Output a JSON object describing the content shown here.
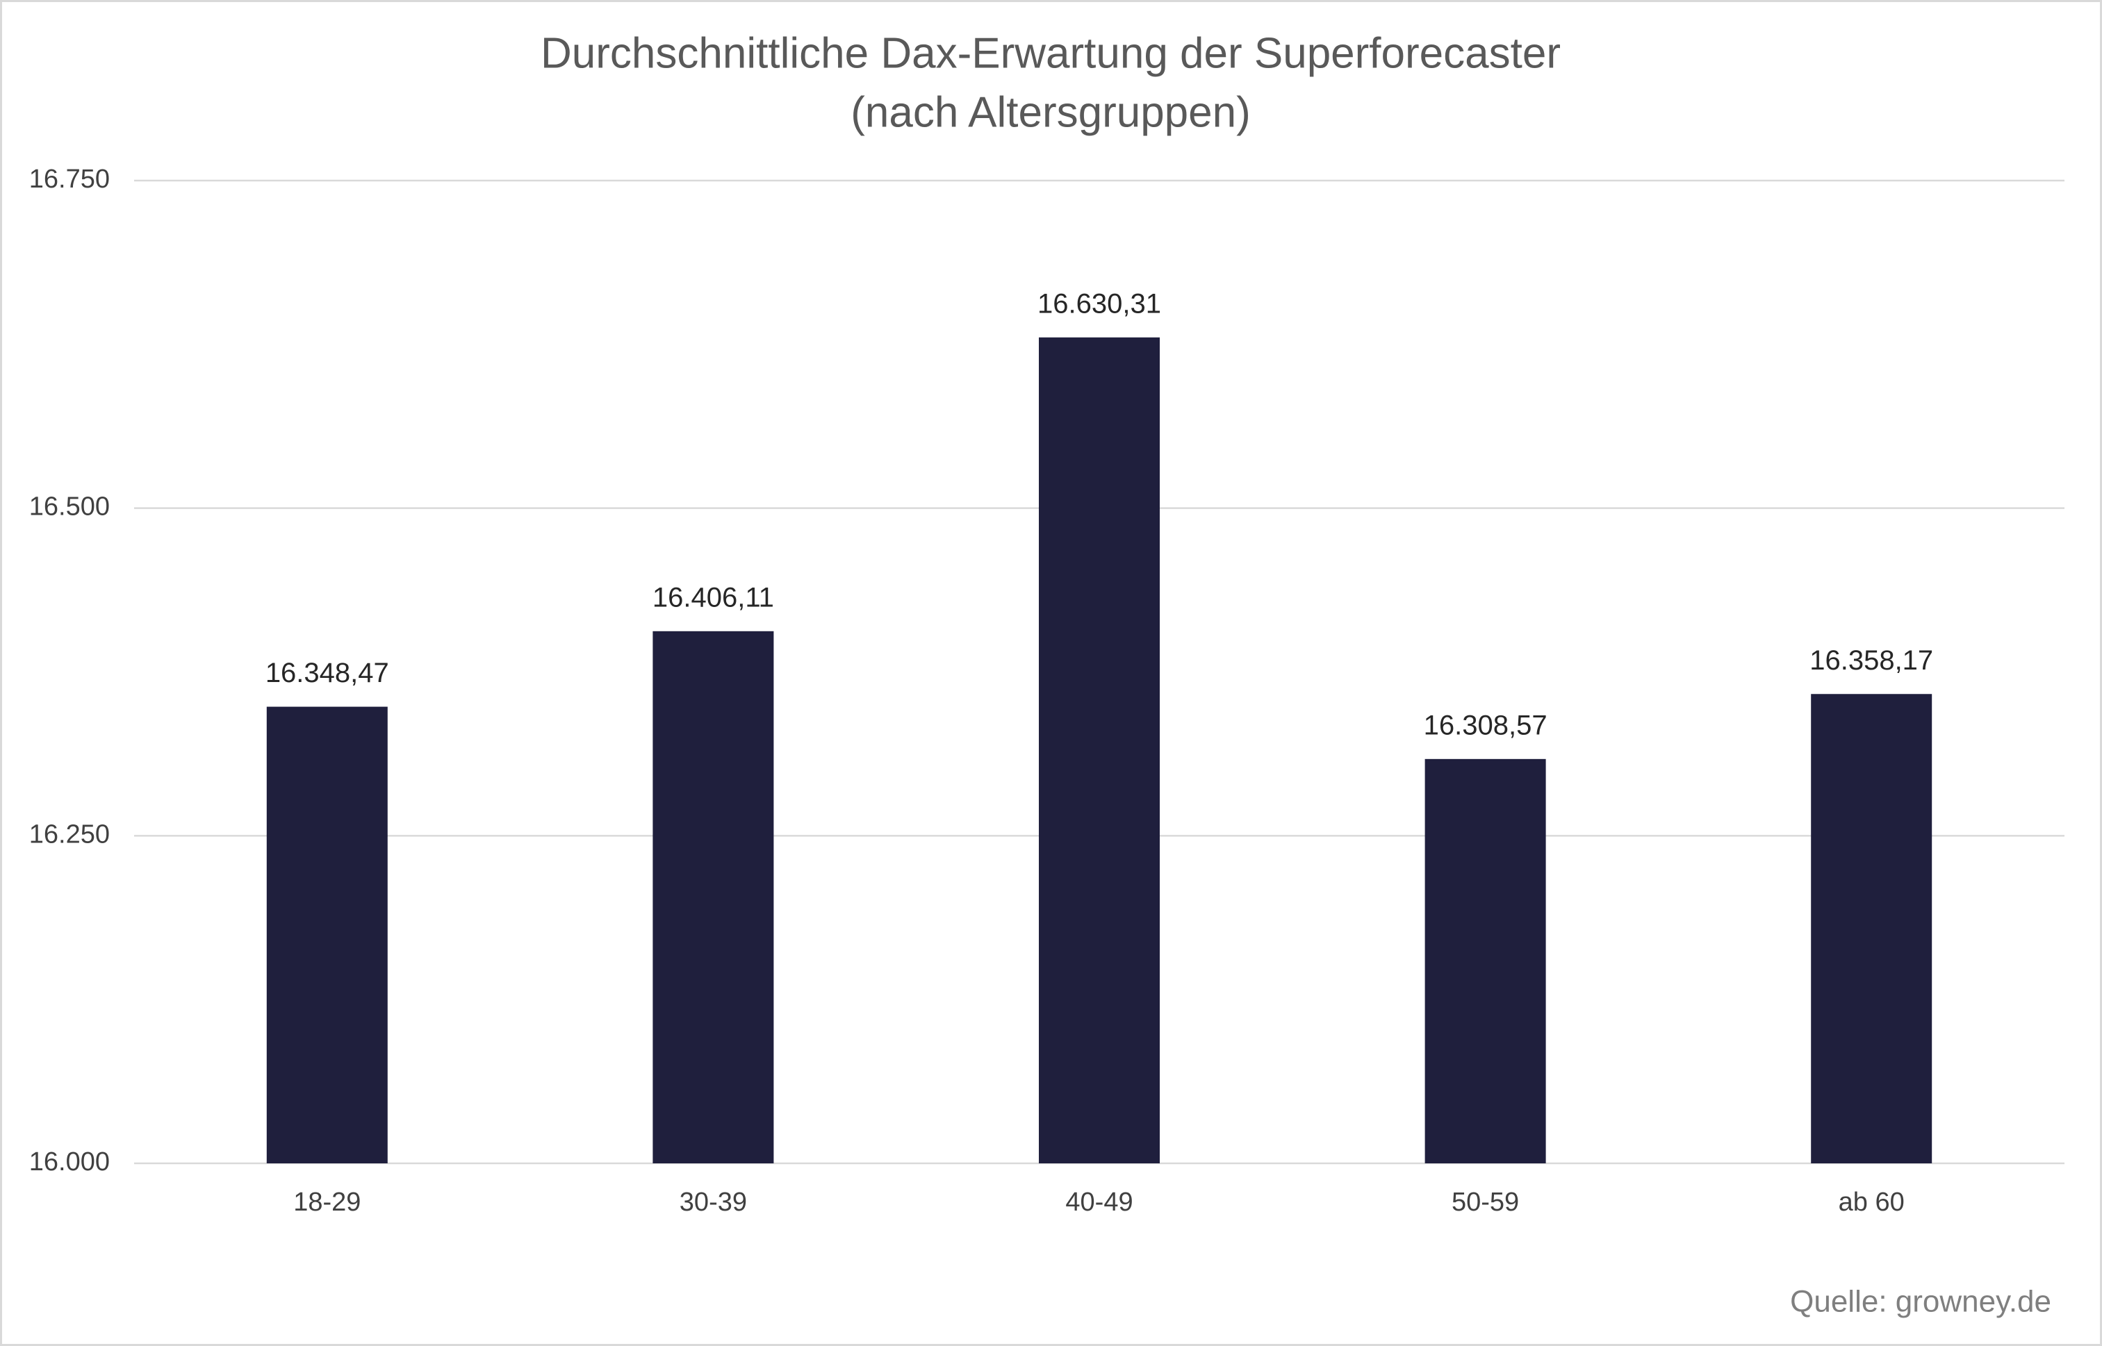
{
  "chart_data": {
    "type": "bar",
    "title": "Durchschnittliche Dax-Erwartung der Superforecaster",
    "subtitle": "(nach Altersgruppen)",
    "categories": [
      "18-29",
      "30-39",
      "40-49",
      "50-59",
      "ab 60"
    ],
    "values": [
      16348.47,
      16406.11,
      16630.31,
      16308.57,
      16358.17
    ],
    "value_labels": [
      "16.348,47",
      "16.406,11",
      "16.630,31",
      "16.308,57",
      "16.358,17"
    ],
    "color": "#1f1f3d",
    "ylim": [
      16000,
      16750
    ],
    "yticks": [
      {
        "value": 16000,
        "label": "16.000"
      },
      {
        "value": 16250,
        "label": "16.250"
      },
      {
        "value": 16500,
        "label": "16.500"
      },
      {
        "value": 16750,
        "label": "16.750"
      }
    ],
    "grid": true,
    "source": "Quelle: growney.de"
  }
}
